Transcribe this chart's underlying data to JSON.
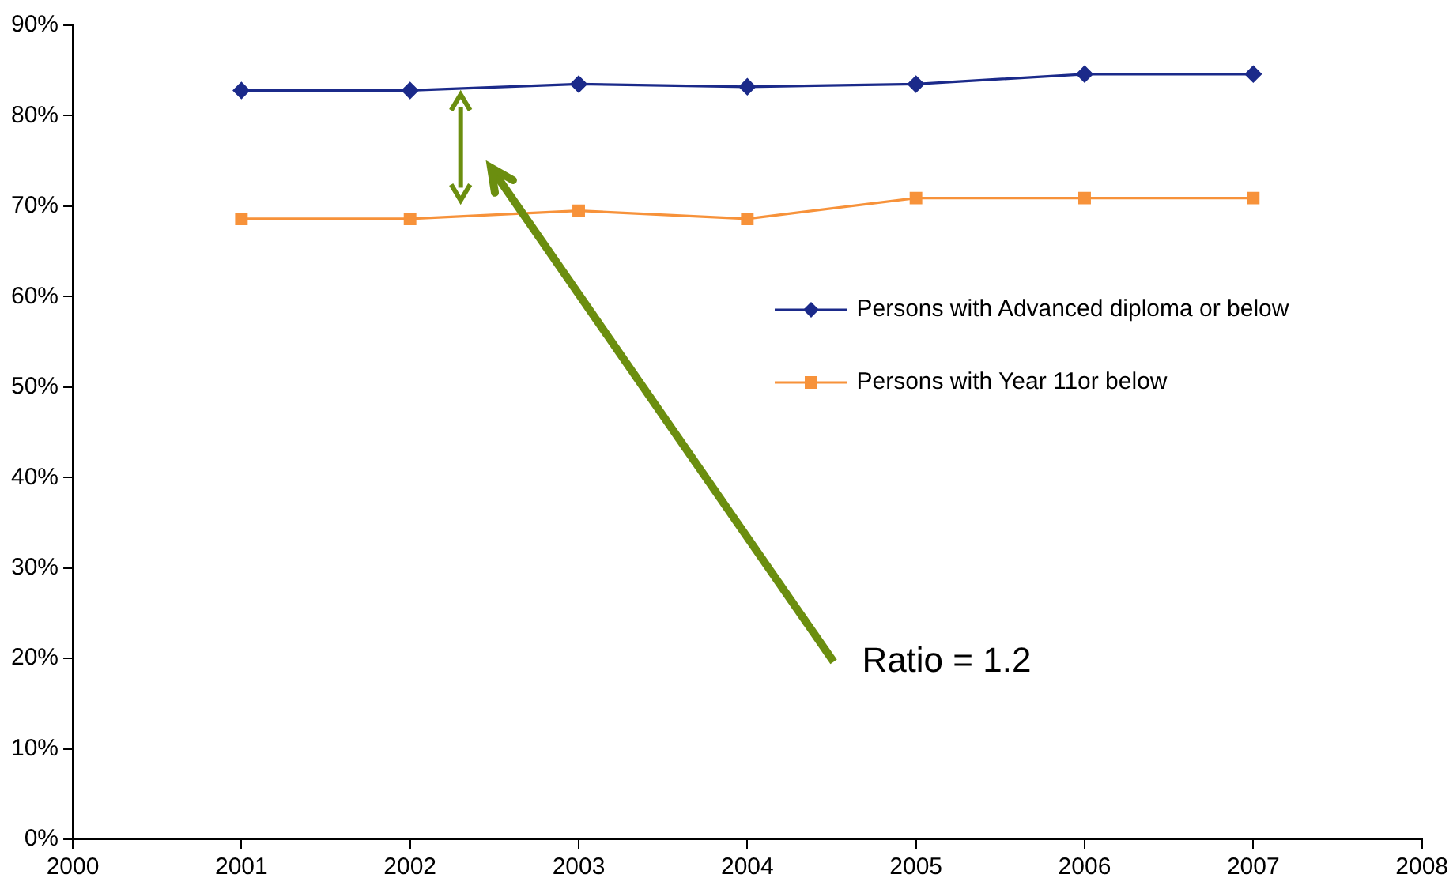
{
  "chart_data": {
    "type": "line",
    "x": [
      2001,
      2002,
      2003,
      2004,
      2005,
      2006,
      2007
    ],
    "series": [
      {
        "name": "Persons with Advanced diploma or below",
        "color": "#1b2a8a",
        "marker": "diamond",
        "values": [
          82.8,
          82.8,
          83.5,
          83.2,
          83.5,
          84.6,
          84.6
        ]
      },
      {
        "name": "Persons with Year 11or below",
        "color": "#f7923a",
        "marker": "square",
        "values": [
          68.6,
          68.6,
          69.5,
          68.6,
          70.9,
          70.9,
          70.9
        ]
      }
    ],
    "xlim": [
      2000,
      2008
    ],
    "xticks": [
      2000,
      2001,
      2002,
      2003,
      2004,
      2005,
      2006,
      2007,
      2008
    ],
    "ylim": [
      0,
      90
    ],
    "yticks": [
      {
        "value": 0,
        "label": "0%"
      },
      {
        "value": 10,
        "label": "10%"
      },
      {
        "value": 20,
        "label": "20%"
      },
      {
        "value": 30,
        "label": "30%"
      },
      {
        "value": 40,
        "label": "40%"
      },
      {
        "value": 50,
        "label": "50%"
      },
      {
        "value": 60,
        "label": "60%"
      },
      {
        "value": 70,
        "label": "70%"
      },
      {
        "value": 80,
        "label": "80%"
      },
      {
        "value": 90,
        "label": "90%"
      }
    ],
    "grid": false,
    "legend": "right",
    "annotations": [
      "Ratio = 1.2"
    ]
  }
}
